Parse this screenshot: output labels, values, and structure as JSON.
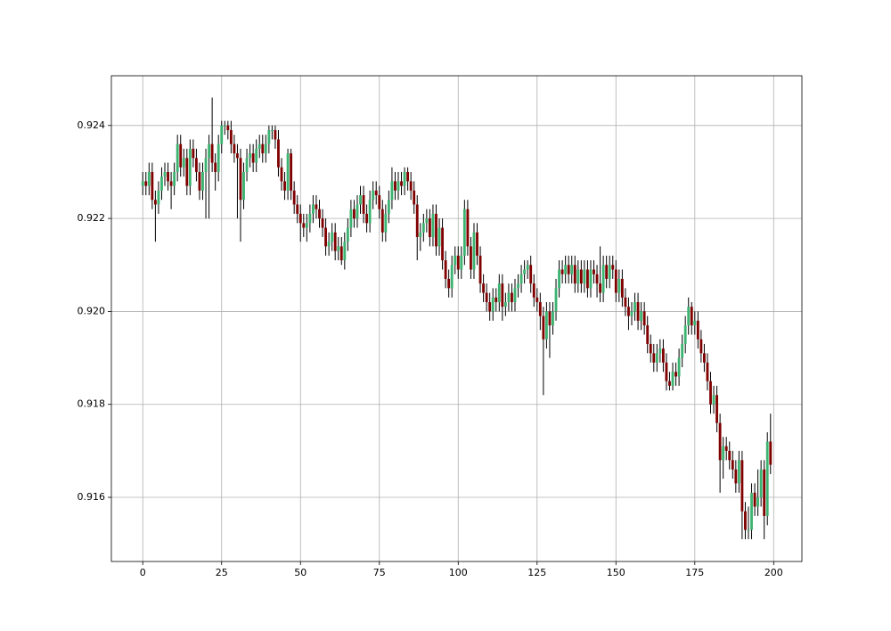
{
  "chart_data": {
    "type": "candlestick",
    "x": [
      0,
      1,
      2,
      3,
      4,
      5,
      6,
      7,
      8,
      9,
      10,
      11,
      12,
      13,
      14,
      15,
      16,
      17,
      18,
      19,
      20,
      21,
      22,
      23,
      24,
      25,
      26,
      27,
      28,
      29,
      30,
      31,
      32,
      33,
      34,
      35,
      36,
      37,
      38,
      39,
      40,
      41,
      42,
      43,
      44,
      45,
      46,
      47,
      48,
      49,
      50,
      51,
      52,
      53,
      54,
      55,
      56,
      57,
      58,
      59,
      60,
      61,
      62,
      63,
      64,
      65,
      66,
      67,
      68,
      69,
      70,
      71,
      72,
      73,
      74,
      75,
      76,
      77,
      78,
      79,
      80,
      81,
      82,
      83,
      84,
      85,
      86,
      87,
      88,
      89,
      90,
      91,
      92,
      93,
      94,
      95,
      96,
      97,
      98,
      99,
      100,
      101,
      102,
      103,
      104,
      105,
      106,
      107,
      108,
      109,
      110,
      111,
      112,
      113,
      114,
      115,
      116,
      117,
      118,
      119,
      120,
      121,
      122,
      123,
      124,
      125,
      126,
      127,
      128,
      129,
      130,
      131,
      132,
      133,
      134,
      135,
      136,
      137,
      138,
      139,
      140,
      141,
      142,
      143,
      144,
      145,
      146,
      147,
      148,
      149,
      150,
      151,
      152,
      153,
      154,
      155,
      156,
      157,
      158,
      159,
      160,
      161,
      162,
      163,
      164,
      165,
      166,
      167,
      168,
      169,
      170,
      171,
      172,
      173,
      174,
      175,
      176,
      177,
      178,
      179,
      180,
      181,
      182,
      183,
      184,
      185,
      186,
      187,
      188,
      189,
      190,
      191,
      192,
      193,
      194,
      195,
      196,
      197,
      198,
      199
    ],
    "open": [
      0.9227,
      0.9228,
      0.9227,
      0.923,
      0.9224,
      0.9223,
      0.9226,
      0.9229,
      0.923,
      0.9228,
      0.9227,
      0.923,
      0.9236,
      0.9231,
      0.9233,
      0.9227,
      0.9235,
      0.9233,
      0.923,
      0.9226,
      0.923,
      0.9233,
      0.9236,
      0.9232,
      0.923,
      0.9236,
      0.924,
      0.924,
      0.9239,
      0.9236,
      0.9234,
      0.9233,
      0.9224,
      0.923,
      0.9233,
      0.9234,
      0.9232,
      0.9235,
      0.9236,
      0.9234,
      0.9236,
      0.9239,
      0.9239,
      0.9237,
      0.9231,
      0.9228,
      0.9226,
      0.9234,
      0.9226,
      0.9223,
      0.9221,
      0.9219,
      0.9218,
      0.9219,
      0.9221,
      0.9223,
      0.9222,
      0.922,
      0.9218,
      0.9214,
      0.9215,
      0.9217,
      0.9213,
      0.9214,
      0.9211,
      0.9215,
      0.9218,
      0.9222,
      0.922,
      0.9223,
      0.9225,
      0.9221,
      0.9219,
      0.9224,
      0.9226,
      0.9225,
      0.9222,
      0.9217,
      0.9221,
      0.9224,
      0.9228,
      0.9226,
      0.9228,
      0.9227,
      0.923,
      0.9228,
      0.9226,
      0.9223,
      0.9216,
      0.9217,
      0.9219,
      0.922,
      0.9216,
      0.9221,
      0.9214,
      0.9218,
      0.9211,
      0.9207,
      0.9205,
      0.921,
      0.9212,
      0.9209,
      0.9212,
      0.9222,
      0.9214,
      0.9209,
      0.9217,
      0.9212,
      0.9206,
      0.9204,
      0.9202,
      0.92,
      0.9203,
      0.9202,
      0.9206,
      0.9201,
      0.9202,
      0.9204,
      0.9202,
      0.9205,
      0.9206,
      0.9208,
      0.9209,
      0.921,
      0.9206,
      0.9203,
      0.9202,
      0.9199,
      0.9194,
      0.92,
      0.9197,
      0.92,
      0.9205,
      0.9209,
      0.9208,
      0.921,
      0.9208,
      0.921,
      0.9206,
      0.9209,
      0.9206,
      0.9209,
      0.9205,
      0.9209,
      0.9208,
      0.9206,
      0.9204,
      0.921,
      0.9207,
      0.921,
      0.9209,
      0.9204,
      0.9207,
      0.9203,
      0.9201,
      0.9199,
      0.92,
      0.9202,
      0.9198,
      0.92,
      0.9197,
      0.9193,
      0.9191,
      0.9189,
      0.9191,
      0.9192,
      0.9189,
      0.9185,
      0.9184,
      0.9187,
      0.9186,
      0.919,
      0.9193,
      0.9197,
      0.9201,
      0.9197,
      0.9198,
      0.9194,
      0.9191,
      0.9189,
      0.9185,
      0.918,
      0.9182,
      0.9176,
      0.9168,
      0.9171,
      0.917,
      0.9168,
      0.9166,
      0.9163,
      0.9168,
      0.9157,
      0.9153,
      0.9153,
      0.9161,
      0.9158,
      0.916,
      0.9166,
      0.9156,
      0.9172
    ],
    "high": [
      0.923,
      0.923,
      0.9232,
      0.9232,
      0.9226,
      0.9228,
      0.9231,
      0.9232,
      0.9232,
      0.923,
      0.9232,
      0.9238,
      0.9238,
      0.9235,
      0.9235,
      0.9237,
      0.9237,
      0.9235,
      0.9232,
      0.9232,
      0.9235,
      0.9238,
      0.9246,
      0.9234,
      0.9238,
      0.9241,
      0.9241,
      0.9241,
      0.9241,
      0.9238,
      0.9236,
      0.9235,
      0.9232,
      0.9235,
      0.9236,
      0.9236,
      0.9237,
      0.9238,
      0.9238,
      0.9238,
      0.924,
      0.924,
      0.924,
      0.9239,
      0.9233,
      0.923,
      0.9235,
      0.9235,
      0.9228,
      0.9225,
      0.9223,
      0.9221,
      0.9221,
      0.9223,
      0.9225,
      0.9225,
      0.9224,
      0.9222,
      0.922,
      0.9217,
      0.9219,
      0.9219,
      0.9216,
      0.9216,
      0.9217,
      0.922,
      0.9224,
      0.9224,
      0.9225,
      0.9227,
      0.9227,
      0.9223,
      0.9226,
      0.9228,
      0.9228,
      0.9227,
      0.9224,
      0.9223,
      0.9226,
      0.9231,
      0.923,
      0.923,
      0.923,
      0.9231,
      0.9231,
      0.923,
      0.9228,
      0.9225,
      0.9219,
      0.9221,
      0.9222,
      0.9222,
      0.9223,
      0.9223,
      0.922,
      0.922,
      0.9213,
      0.9209,
      0.9212,
      0.9214,
      0.9214,
      0.9214,
      0.9224,
      0.9224,
      0.9216,
      0.9219,
      0.9219,
      0.9214,
      0.9208,
      0.9206,
      0.9204,
      0.9205,
      0.9205,
      0.9208,
      0.9208,
      0.9204,
      0.9206,
      0.9206,
      0.9207,
      0.9208,
      0.921,
      0.9211,
      0.9211,
      0.9212,
      0.9208,
      0.9205,
      0.9204,
      0.9201,
      0.9202,
      0.9202,
      0.9202,
      0.9207,
      0.9211,
      0.9211,
      0.9212,
      0.9212,
      0.9212,
      0.9212,
      0.9211,
      0.9211,
      0.9211,
      0.9211,
      0.9211,
      0.9211,
      0.921,
      0.9214,
      0.9212,
      0.9212,
      0.9212,
      0.9212,
      0.9211,
      0.9209,
      0.9209,
      0.9205,
      0.9203,
      0.9202,
      0.9204,
      0.9204,
      0.9202,
      0.9202,
      0.9199,
      0.9195,
      0.9193,
      0.9193,
      0.9194,
      0.9194,
      0.9191,
      0.9187,
      0.9189,
      0.9189,
      0.9192,
      0.9195,
      0.9199,
      0.9203,
      0.9202,
      0.92,
      0.92,
      0.9196,
      0.9193,
      0.9191,
      0.9187,
      0.9184,
      0.9184,
      0.9178,
      0.9173,
      0.9173,
      0.9172,
      0.917,
      0.9168,
      0.917,
      0.917,
      0.9159,
      0.9158,
      0.9163,
      0.9163,
      0.9166,
      0.9168,
      0.9168,
      0.9174,
      0.9178
    ],
    "low": [
      0.9225,
      0.9225,
      0.9225,
      0.9222,
      0.9215,
      0.9221,
      0.9224,
      0.9227,
      0.9226,
      0.9222,
      0.9225,
      0.9228,
      0.9229,
      0.9229,
      0.9225,
      0.9225,
      0.9231,
      0.9228,
      0.9224,
      0.9224,
      0.922,
      0.922,
      0.923,
      0.9226,
      0.9228,
      0.9234,
      0.9238,
      0.9237,
      0.9234,
      0.9232,
      0.922,
      0.9215,
      0.9222,
      0.9228,
      0.9231,
      0.923,
      0.923,
      0.9233,
      0.9232,
      0.9232,
      0.9234,
      0.9237,
      0.9235,
      0.9229,
      0.9226,
      0.9224,
      0.9224,
      0.9224,
      0.9221,
      0.9219,
      0.9215,
      0.9216,
      0.9215,
      0.9217,
      0.9219,
      0.922,
      0.9218,
      0.9216,
      0.9212,
      0.9212,
      0.9213,
      0.9211,
      0.9211,
      0.921,
      0.9209,
      0.9213,
      0.9216,
      0.9218,
      0.9218,
      0.9221,
      0.9219,
      0.9217,
      0.9217,
      0.9222,
      0.9223,
      0.922,
      0.9215,
      0.9215,
      0.9219,
      0.9222,
      0.9224,
      0.9224,
      0.9225,
      0.9225,
      0.9226,
      0.9224,
      0.9221,
      0.9211,
      0.9213,
      0.9215,
      0.9217,
      0.9214,
      0.9214,
      0.9212,
      0.9212,
      0.9209,
      0.9205,
      0.9203,
      0.9203,
      0.9208,
      0.9207,
      0.9207,
      0.921,
      0.9212,
      0.9207,
      0.9207,
      0.921,
      0.9204,
      0.9202,
      0.92,
      0.9198,
      0.9198,
      0.92,
      0.92,
      0.9198,
      0.9199,
      0.92,
      0.92,
      0.92,
      0.9203,
      0.9204,
      0.9206,
      0.9207,
      0.9204,
      0.9201,
      0.92,
      0.9196,
      0.9182,
      0.9192,
      0.919,
      0.9195,
      0.9198,
      0.9203,
      0.9206,
      0.9206,
      0.9206,
      0.9206,
      0.9204,
      0.9204,
      0.9204,
      0.9204,
      0.9203,
      0.9203,
      0.9206,
      0.9203,
      0.9202,
      0.9202,
      0.9205,
      0.9205,
      0.9207,
      0.9202,
      0.9202,
      0.9201,
      0.9199,
      0.9196,
      0.9197,
      0.9198,
      0.9196,
      0.9196,
      0.9195,
      0.9191,
      0.9189,
      0.9187,
      0.9187,
      0.9189,
      0.9187,
      0.9183,
      0.9183,
      0.9183,
      0.9184,
      0.9184,
      0.9188,
      0.9191,
      0.9195,
      0.9195,
      0.9195,
      0.9192,
      0.9189,
      0.9187,
      0.9183,
      0.9178,
      0.9178,
      0.9174,
      0.9161,
      0.9164,
      0.9168,
      0.9166,
      0.9164,
      0.9161,
      0.9161,
      0.9151,
      0.9151,
      0.9151,
      0.9151,
      0.9156,
      0.9156,
      0.9158,
      0.9151,
      0.9154,
      0.9165
    ],
    "close": [
      0.9228,
      0.9227,
      0.923,
      0.9224,
      0.9223,
      0.9226,
      0.9229,
      0.923,
      0.9228,
      0.9227,
      0.923,
      0.9236,
      0.9231,
      0.9233,
      0.9227,
      0.9235,
      0.9233,
      0.923,
      0.9226,
      0.923,
      0.9233,
      0.9236,
      0.9232,
      0.923,
      0.9236,
      0.924,
      0.924,
      0.9239,
      0.9236,
      0.9234,
      0.9233,
      0.9224,
      0.923,
      0.9233,
      0.9234,
      0.9232,
      0.9235,
      0.9236,
      0.9234,
      0.9236,
      0.9239,
      0.9239,
      0.9237,
      0.9231,
      0.9228,
      0.9226,
      0.9234,
      0.9226,
      0.9223,
      0.9221,
      0.9219,
      0.9218,
      0.9219,
      0.9221,
      0.9223,
      0.9222,
      0.922,
      0.9218,
      0.9214,
      0.9215,
      0.9217,
      0.9213,
      0.9214,
      0.9211,
      0.9215,
      0.9218,
      0.9222,
      0.922,
      0.9223,
      0.9225,
      0.9221,
      0.9219,
      0.9224,
      0.9226,
      0.9225,
      0.9222,
      0.9217,
      0.9221,
      0.9224,
      0.9228,
      0.9226,
      0.9228,
      0.9227,
      0.923,
      0.9228,
      0.9226,
      0.9223,
      0.9216,
      0.9217,
      0.9219,
      0.922,
      0.9216,
      0.9221,
      0.9214,
      0.9218,
      0.9211,
      0.9207,
      0.9205,
      0.921,
      0.9212,
      0.9209,
      0.9212,
      0.9222,
      0.9214,
      0.9209,
      0.9217,
      0.9212,
      0.9206,
      0.9204,
      0.9202,
      0.92,
      0.9203,
      0.9202,
      0.9206,
      0.9201,
      0.9202,
      0.9204,
      0.9202,
      0.9205,
      0.9206,
      0.9208,
      0.9209,
      0.921,
      0.9206,
      0.9203,
      0.9202,
      0.9199,
      0.9194,
      0.92,
      0.9197,
      0.92,
      0.9205,
      0.9209,
      0.9208,
      0.921,
      0.9208,
      0.921,
      0.9206,
      0.9209,
      0.9206,
      0.9209,
      0.9205,
      0.9209,
      0.9208,
      0.9206,
      0.9204,
      0.921,
      0.9207,
      0.921,
      0.9209,
      0.9204,
      0.9207,
      0.9203,
      0.9201,
      0.9199,
      0.92,
      0.9202,
      0.9198,
      0.92,
      0.9197,
      0.9193,
      0.9191,
      0.9189,
      0.9191,
      0.9192,
      0.9189,
      0.9185,
      0.9184,
      0.9187,
      0.9186,
      0.919,
      0.9193,
      0.9197,
      0.9201,
      0.9197,
      0.9198,
      0.9194,
      0.9191,
      0.9189,
      0.9185,
      0.918,
      0.9182,
      0.9176,
      0.9168,
      0.9171,
      0.917,
      0.9168,
      0.9166,
      0.9163,
      0.9168,
      0.9157,
      0.9153,
      0.9153,
      0.9161,
      0.9158,
      0.916,
      0.9166,
      0.9156,
      0.9172,
      0.9167
    ],
    "up_color": "#3cb371",
    "down_color": "#800000",
    "wick_color": "#000000",
    "xlim": [
      -9.95,
      208.95
    ],
    "ylim": [
      0.91462,
      0.92507
    ],
    "xticks": [
      0,
      25,
      50,
      75,
      100,
      125,
      150,
      175,
      200
    ],
    "yticks": [
      0.916,
      0.918,
      {
        "value": 0.92,
        "label": "0.920"
      },
      0.922,
      0.924
    ],
    "grid": true
  }
}
